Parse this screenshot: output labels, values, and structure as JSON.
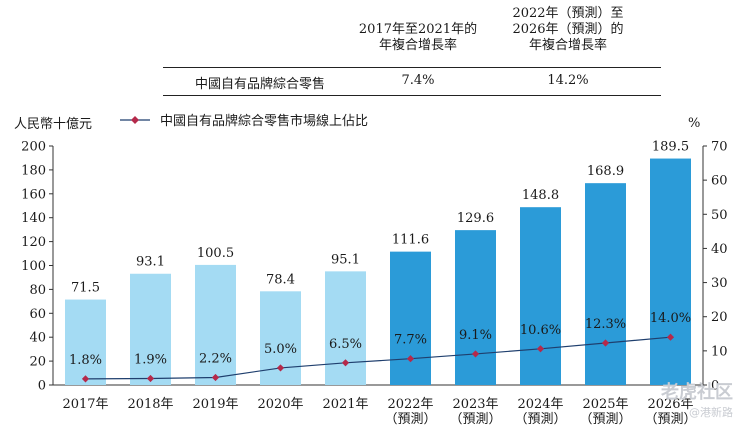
{
  "cagr_table": {
    "col1_header_line1": "2017年至2021年的",
    "col1_header_line2": "年複合增長率",
    "col2_header_line1": "2022年（預測）至",
    "col2_header_line2": "2026年（預測）的",
    "col2_header_line3": "年複合增長率",
    "row_label": "中國自有品牌綜合零售",
    "col1_value": "7.4%",
    "col2_value": "14.2%"
  },
  "watermark": {
    "line1": "老虎社区",
    "line2": "@港新路"
  },
  "chart_data": {
    "type": "bar",
    "left_axis_unit": "人民幣十億元",
    "right_axis_unit": "%",
    "legend": [
      {
        "label": "中國自有品牌綜合零售市場線上佔比",
        "marker": "diamond-line",
        "color": "#b5294a"
      }
    ],
    "categories": [
      [
        "2017年"
      ],
      [
        "2018年"
      ],
      [
        "2019年"
      ],
      [
        "2020年"
      ],
      [
        "2021年"
      ],
      [
        "2022年",
        "（預測）"
      ],
      [
        "2023年",
        "（預測）"
      ],
      [
        "2024年",
        "（預測）"
      ],
      [
        "2025年",
        "（預測）"
      ],
      [
        "2026年",
        "（預測）"
      ]
    ],
    "bar_values": [
      71.5,
      93.1,
      100.5,
      78.4,
      95.1,
      111.6,
      129.6,
      148.8,
      168.9,
      189.5
    ],
    "bar_labels": [
      "71.5",
      "93.1",
      "100.5",
      "78.4",
      "95.1",
      "111.6",
      "129.6",
      "148.8",
      "168.9",
      "189.5"
    ],
    "bar_colors": {
      "historical": "#a4dbf3",
      "forecast": "#2b9bd8"
    },
    "forecast_start_index": 5,
    "line_values": [
      1.8,
      1.9,
      2.2,
      5.0,
      6.5,
      7.7,
      9.1,
      10.6,
      12.3,
      14.0
    ],
    "line_labels": [
      "1.8%",
      "1.9%",
      "2.2%",
      "5.0%",
      "6.5%",
      "7.7%",
      "9.1%",
      "10.6%",
      "12.3%",
      "14.0%"
    ],
    "line_color": "#1f3f6e",
    "marker_color": "#b5294a",
    "left_ylim": [
      0,
      200
    ],
    "left_ticks": [
      "0",
      "20",
      "40",
      "60",
      "80",
      "100",
      "120",
      "140",
      "160",
      "180",
      "200"
    ],
    "right_ylim": [
      0,
      70
    ],
    "right_ticks": [
      "0",
      "10",
      "20",
      "30",
      "40",
      "50",
      "60",
      "70"
    ],
    "grid": false
  }
}
